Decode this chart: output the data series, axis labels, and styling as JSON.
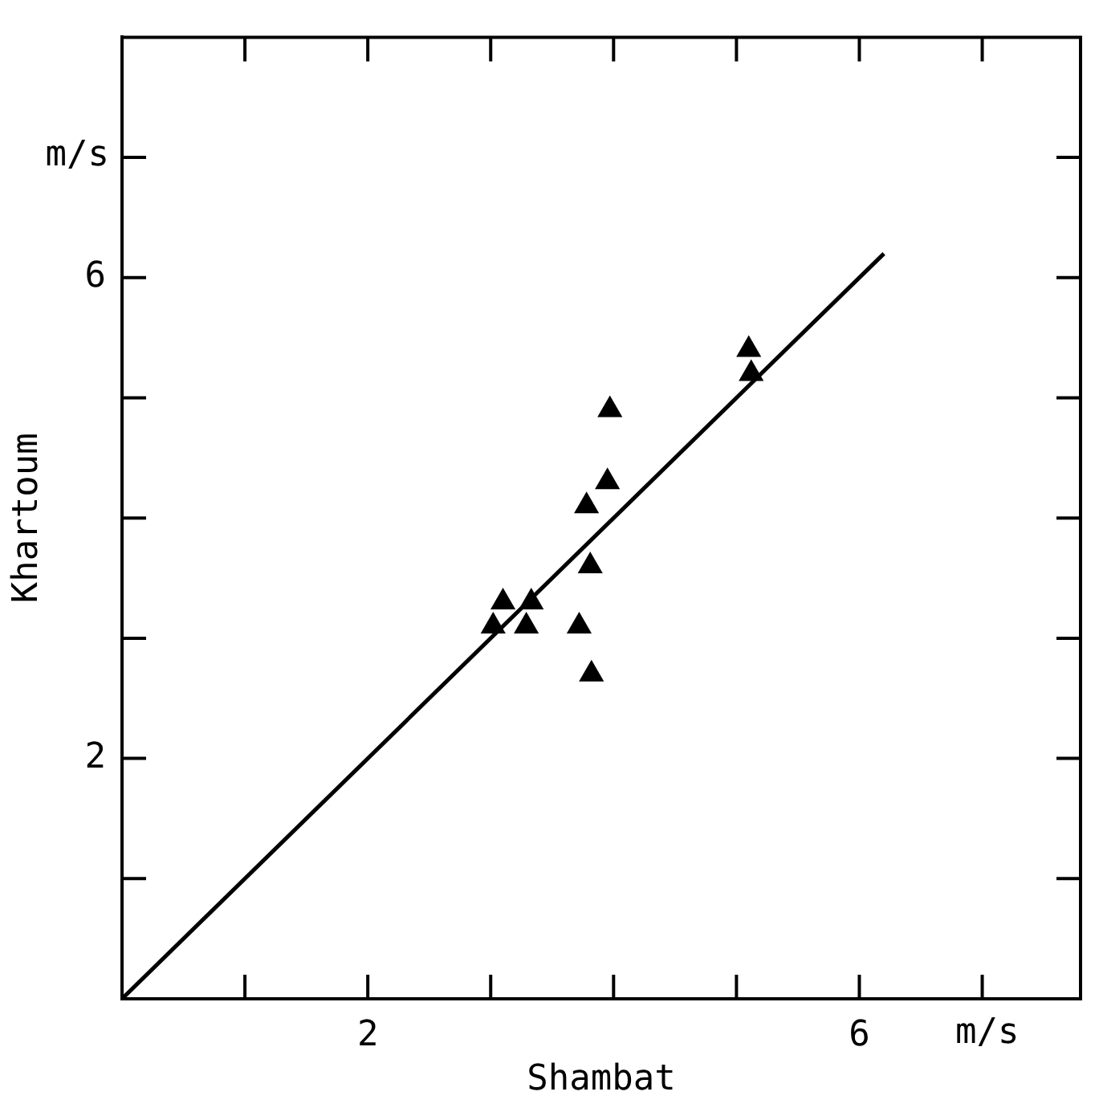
{
  "chart_data": {
    "type": "scatter",
    "xlabel": "Shambat",
    "ylabel": "Khartoum",
    "annotations": [
      "m/s",
      "m/s"
    ],
    "series": [
      {
        "color": "#000000",
        "marker": "triangle",
        "x": [
          3.02,
          3.1,
          3.29,
          3.33,
          3.72,
          3.82,
          3.81,
          3.78,
          3.95,
          3.97,
          5.1,
          5.12
        ],
        "values": [
          3.1,
          3.3,
          3.1,
          3.3,
          3.1,
          2.7,
          3.6,
          4.1,
          4.3,
          4.9,
          5.4,
          5.2
        ]
      },
      {
        "type": "line",
        "color": "#000000",
        "marker": "none",
        "x": [
          0,
          6.2
        ],
        "values": [
          0,
          6.2
        ]
      }
    ],
    "xlim": [
      0,
      7.8
    ],
    "ylim": [
      0,
      8
    ],
    "xticks": [
      {
        "value": 1,
        "label": null
      },
      2,
      {
        "value": 3,
        "label": null
      },
      {
        "value": 4,
        "label": null
      },
      {
        "value": 5,
        "label": null
      },
      6,
      {
        "value": 7,
        "label": null
      }
    ],
    "yticks": [
      {
        "value": 1,
        "label": null
      },
      2,
      {
        "value": 3,
        "label": null
      },
      {
        "value": 4,
        "label": null
      },
      {
        "value": 5,
        "label": null
      },
      6,
      {
        "value": 7,
        "label": null
      }
    ],
    "grid": false,
    "legend": false
  }
}
